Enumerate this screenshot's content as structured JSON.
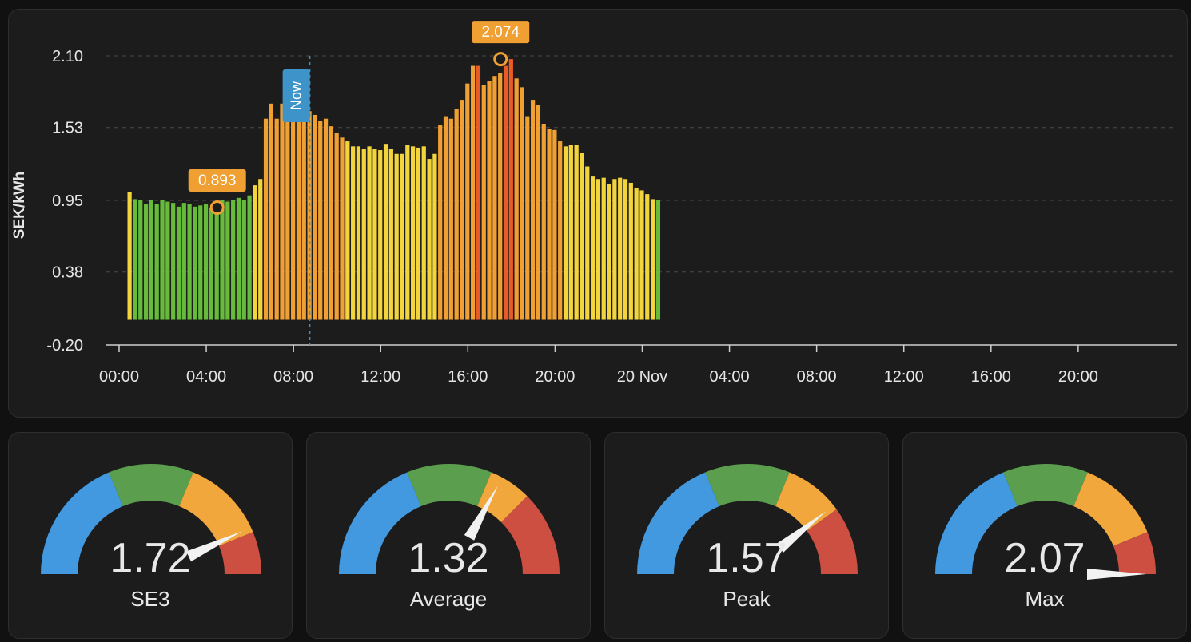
{
  "colors": {
    "green": "#66bb3a",
    "yellow": "#f2d43d",
    "orange": "#f0a033",
    "red": "#e85a26",
    "annotation": "#f0a033",
    "now_marker": "#3e94c8",
    "gauge_blue": "#4399df",
    "gauge_green": "#5b9e4d",
    "gauge_orange": "#f1a73b",
    "gauge_red": "#cd4f41"
  },
  "chart_data": {
    "type": "bar",
    "ylabel": "SEK/kWh",
    "ylim": [
      -0.2,
      2.1
    ],
    "yticks": [
      "2.10",
      "1.53",
      "0.95",
      "0.38",
      "-0.20"
    ],
    "xticks": [
      "00:00",
      "04:00",
      "08:00",
      "12:00",
      "16:00",
      "20:00",
      "20 Nov",
      "04:00",
      "08:00",
      "12:00",
      "16:00",
      "20:00"
    ],
    "x_start": "00:00",
    "interval_minutes": 15,
    "grid": "dashed horizontal",
    "now_label": "Now",
    "now_time": "08:45",
    "min_annotation": {
      "label": "0.893",
      "time": "04:30",
      "value": 0.893
    },
    "max_annotation": {
      "label": "2.074",
      "time": "17:30",
      "value": 2.074
    },
    "values": [
      1.02,
      0.96,
      0.95,
      0.92,
      0.95,
      0.92,
      0.95,
      0.94,
      0.93,
      0.9,
      0.93,
      0.92,
      0.9,
      0.91,
      0.92,
      0.893,
      0.93,
      0.95,
      0.94,
      0.95,
      0.97,
      0.95,
      0.99,
      1.07,
      1.12,
      1.6,
      1.72,
      1.6,
      1.72,
      1.72,
      1.78,
      1.7,
      1.7,
      1.66,
      1.63,
      1.58,
      1.6,
      1.54,
      1.49,
      1.45,
      1.42,
      1.38,
      1.38,
      1.36,
      1.38,
      1.36,
      1.35,
      1.4,
      1.36,
      1.32,
      1.32,
      1.39,
      1.38,
      1.37,
      1.38,
      1.28,
      1.32,
      1.55,
      1.62,
      1.6,
      1.68,
      1.75,
      1.88,
      2.02,
      2.02,
      1.87,
      1.9,
      1.94,
      1.96,
      2.02,
      2.074,
      1.92,
      1.85,
      1.62,
      1.75,
      1.71,
      1.56,
      1.52,
      1.51,
      1.42,
      1.38,
      1.39,
      1.39,
      1.33,
      1.22,
      1.14,
      1.12,
      1.13,
      1.08,
      1.12,
      1.13,
      1.12,
      1.09,
      1.05,
      1.03,
      1.0,
      0.96,
      0.95
    ],
    "value_colors": [
      "yellow",
      "green",
      "green",
      "green",
      "green",
      "green",
      "green",
      "green",
      "green",
      "green",
      "green",
      "green",
      "green",
      "green",
      "green",
      "green",
      "green",
      "green",
      "green",
      "green",
      "green",
      "green",
      "green",
      "yellow",
      "yellow",
      "orange",
      "orange",
      "orange",
      "orange",
      "orange",
      "orange",
      "orange",
      "orange",
      "orange",
      "orange",
      "orange",
      "orange",
      "orange",
      "orange",
      "orange",
      "yellow",
      "yellow",
      "yellow",
      "yellow",
      "yellow",
      "yellow",
      "yellow",
      "yellow",
      "yellow",
      "yellow",
      "yellow",
      "yellow",
      "yellow",
      "yellow",
      "yellow",
      "yellow",
      "yellow",
      "orange",
      "orange",
      "orange",
      "orange",
      "orange",
      "orange",
      "orange",
      "red",
      "orange",
      "orange",
      "orange",
      "orange",
      "red",
      "red",
      "orange",
      "orange",
      "orange",
      "orange",
      "orange",
      "orange",
      "orange",
      "orange",
      "orange",
      "yellow",
      "yellow",
      "yellow",
      "yellow",
      "yellow",
      "yellow",
      "yellow",
      "yellow",
      "yellow",
      "yellow",
      "yellow",
      "yellow",
      "yellow",
      "yellow",
      "yellow",
      "yellow",
      "yellow",
      "green"
    ]
  },
  "gauges": [
    {
      "value": "1.72",
      "number": 1.72,
      "name": "SE3",
      "thresholds": [
        0.75,
        1.25,
        1.75
      ]
    },
    {
      "value": "1.32",
      "number": 1.32,
      "name": "Average",
      "thresholds": [
        0.75,
        1.25,
        1.5
      ]
    },
    {
      "value": "1.57",
      "number": 1.57,
      "name": "Peak",
      "thresholds": [
        0.75,
        1.25,
        1.6
      ]
    },
    {
      "value": "2.07",
      "number": 2.07,
      "name": "Max",
      "thresholds": [
        0.75,
        1.25,
        1.75
      ]
    }
  ]
}
